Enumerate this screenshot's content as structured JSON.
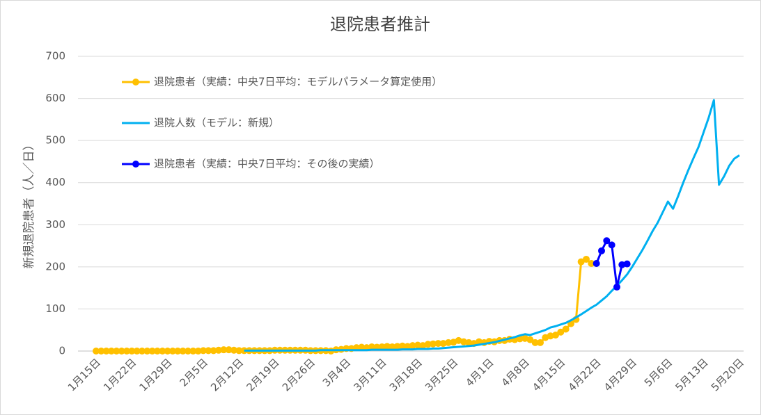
{
  "chart_data": {
    "type": "line",
    "title": "退院患者推計",
    "y_label": "新規退院患者（人／日）",
    "ylim": [
      0,
      700
    ],
    "yticks": [
      0,
      100,
      200,
      300,
      400,
      500,
      600,
      700
    ],
    "grid": true,
    "legend": "top-left",
    "categories": [
      "1月15日",
      null,
      null,
      null,
      null,
      null,
      null,
      "1月22日",
      null,
      null,
      null,
      null,
      null,
      null,
      "1月29日",
      null,
      null,
      null,
      null,
      null,
      null,
      "2月5日",
      null,
      null,
      null,
      null,
      null,
      null,
      "2月12日",
      null,
      null,
      null,
      null,
      null,
      null,
      "2月19日",
      null,
      null,
      null,
      null,
      null,
      null,
      "2月26日",
      null,
      null,
      null,
      null,
      null,
      null,
      "3月4日",
      null,
      null,
      null,
      null,
      null,
      null,
      "3月11日",
      null,
      null,
      null,
      null,
      null,
      null,
      "3月18日",
      null,
      null,
      null,
      null,
      null,
      null,
      "3月25日",
      null,
      null,
      null,
      null,
      null,
      null,
      "4月1日",
      null,
      null,
      null,
      null,
      null,
      null,
      "4月8日",
      null,
      null,
      null,
      null,
      null,
      null,
      "4月15日",
      null,
      null,
      null,
      null,
      null,
      null,
      "4月22日",
      null,
      null,
      null,
      null,
      null,
      null,
      "4月29日",
      null,
      null,
      null,
      null,
      null,
      null,
      "5月6日",
      null,
      null,
      null,
      null,
      null,
      null,
      "5月13日",
      null,
      null,
      null,
      null,
      null,
      null,
      "5月20日"
    ],
    "series": [
      {
        "name": "退院患者（実績：中央7日平均：モデルパラメータ算定使用）",
        "color": "#ffc000",
        "markers": true,
        "values": [
          0,
          0,
          0,
          0,
          0,
          0,
          0,
          0,
          0,
          0,
          0,
          0,
          0,
          0,
          0,
          0,
          0,
          0,
          0,
          0,
          0,
          1,
          1,
          1,
          2,
          3,
          3,
          2,
          1,
          1,
          1,
          1,
          1,
          1,
          1,
          2,
          2,
          2,
          2,
          2,
          2,
          2,
          1,
          1,
          1,
          1,
          0,
          3,
          4,
          6,
          6,
          8,
          9,
          8,
          10,
          9,
          10,
          11,
          10,
          11,
          12,
          11,
          13,
          14,
          13,
          16,
          17,
          18,
          18,
          20,
          21,
          25,
          22,
          20,
          18,
          22,
          20,
          23,
          22,
          25,
          25,
          28,
          27,
          29,
          30,
          27,
          20,
          20,
          32,
          36,
          38,
          45,
          52,
          65,
          75,
          212,
          218,
          208,
          null,
          null,
          null,
          null,
          null,
          null,
          null,
          null,
          null,
          null,
          null,
          null,
          null,
          null,
          null,
          null,
          null,
          null,
          null,
          null,
          null,
          null,
          null,
          null,
          null,
          null,
          null,
          null,
          null
        ]
      },
      {
        "name": "退院人数（モデル：新規）",
        "color": "#00b0f0",
        "markers": false,
        "values": [
          null,
          null,
          null,
          null,
          null,
          null,
          null,
          null,
          null,
          null,
          null,
          null,
          null,
          null,
          null,
          null,
          null,
          null,
          null,
          null,
          null,
          null,
          null,
          null,
          null,
          null,
          null,
          null,
          null,
          1,
          1,
          1,
          1,
          1,
          1,
          1,
          1,
          1,
          1,
          1,
          1,
          1,
          1,
          1,
          2,
          2,
          2,
          2,
          2,
          2,
          2,
          2,
          2,
          2,
          3,
          3,
          3,
          3,
          3,
          3,
          4,
          4,
          4,
          5,
          5,
          5,
          6,
          6,
          7,
          8,
          9,
          10,
          11,
          12,
          13,
          15,
          17,
          19,
          21,
          24,
          27,
          30,
          33,
          37,
          40,
          38,
          42,
          46,
          50,
          56,
          59,
          63,
          67,
          73,
          80,
          87,
          95,
          103,
          110,
          120,
          130,
          143,
          155,
          168,
          182,
          200,
          220,
          240,
          262,
          285,
          305,
          330,
          355,
          338,
          368,
          400,
          430,
          458,
          485,
          520,
          555,
          596,
          395,
          415,
          440,
          457,
          465
        ]
      },
      {
        "name": "退院患者（実績：中央7日平均：その後の実績）",
        "color": "#0000ff",
        "markers": true,
        "values": [
          null,
          null,
          null,
          null,
          null,
          null,
          null,
          null,
          null,
          null,
          null,
          null,
          null,
          null,
          null,
          null,
          null,
          null,
          null,
          null,
          null,
          null,
          null,
          null,
          null,
          null,
          null,
          null,
          null,
          null,
          null,
          null,
          null,
          null,
          null,
          null,
          null,
          null,
          null,
          null,
          null,
          null,
          null,
          null,
          null,
          null,
          null,
          null,
          null,
          null,
          null,
          null,
          null,
          null,
          null,
          null,
          null,
          null,
          null,
          null,
          null,
          null,
          null,
          null,
          null,
          null,
          null,
          null,
          null,
          null,
          null,
          null,
          null,
          null,
          null,
          null,
          null,
          null,
          null,
          null,
          null,
          null,
          null,
          null,
          null,
          null,
          null,
          null,
          null,
          null,
          null,
          null,
          null,
          null,
          null,
          null,
          null,
          null,
          208,
          238,
          262,
          252,
          152,
          205,
          207,
          null,
          null,
          null,
          null,
          null,
          null,
          null,
          null,
          null,
          null,
          null,
          null,
          null,
          null,
          null,
          null,
          null,
          null,
          null,
          null,
          null,
          null
        ]
      }
    ]
  }
}
